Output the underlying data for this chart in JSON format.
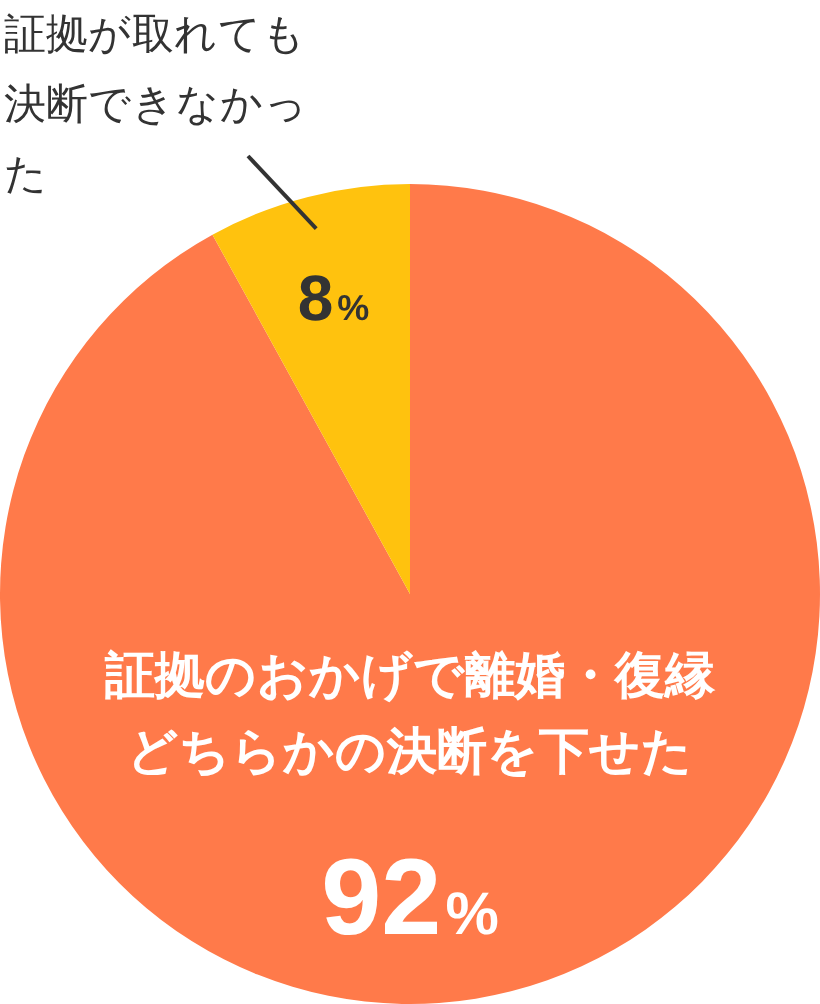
{
  "chart_data": {
    "type": "pie",
    "categories": [
      "証拠のおかげで離婚・復縁どちらかの決断を下せた",
      "証拠が取れても決断できなかった"
    ],
    "values": [
      92,
      8
    ],
    "colors": [
      "#ff7a4a",
      "#ffc20e"
    ],
    "value_labels": [
      "92%",
      "8%"
    ],
    "legend": false
  }
}
